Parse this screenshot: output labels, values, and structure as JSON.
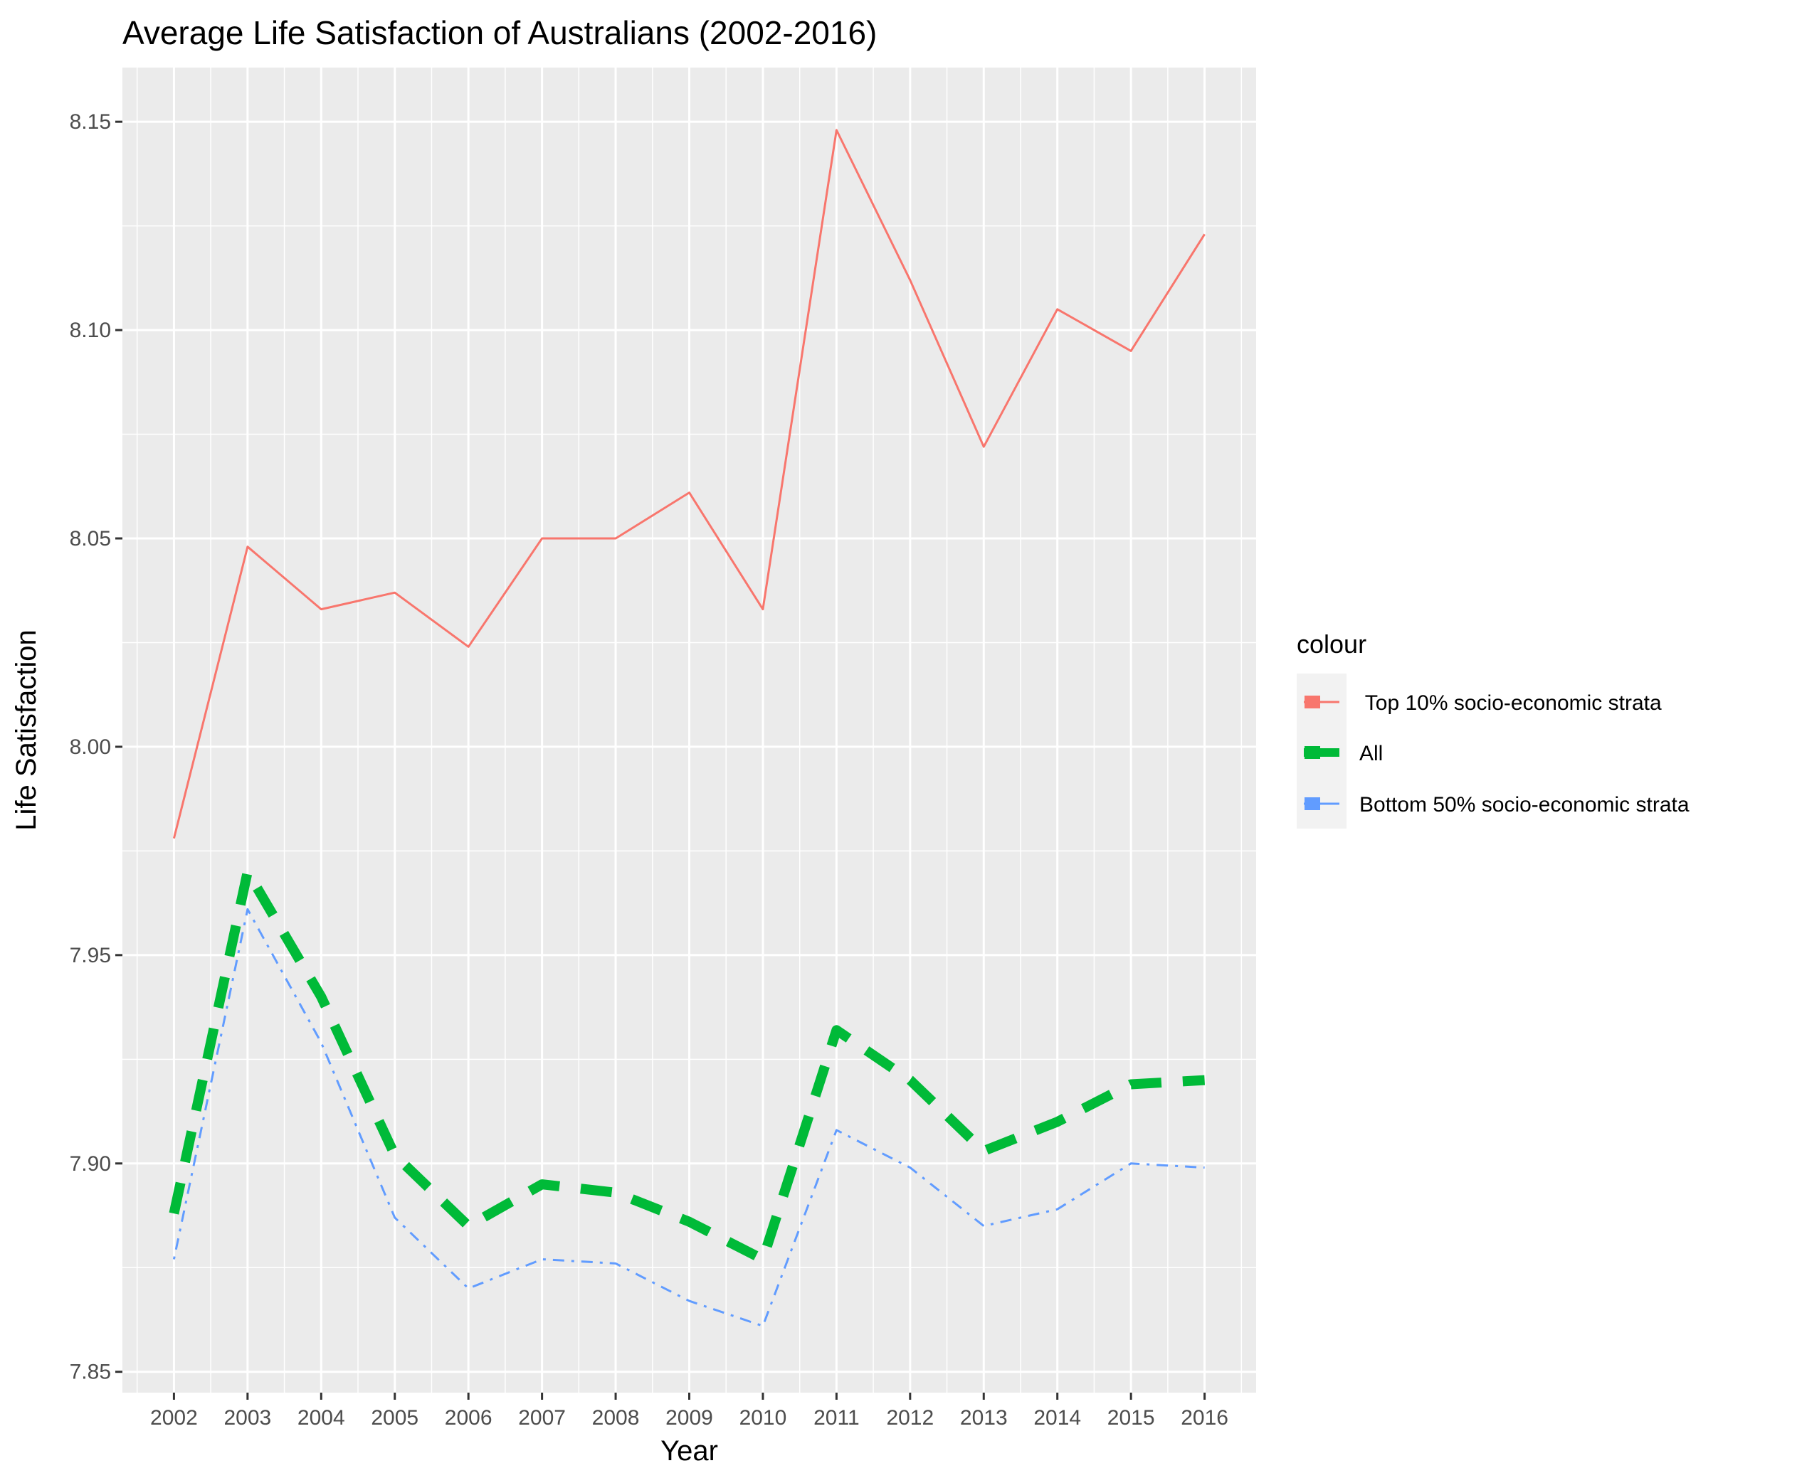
{
  "chart_data": {
    "type": "line",
    "title": "Average Life Satisfaction of Australians (2002-2016)",
    "xlabel": "Year",
    "ylabel": "Life Satisfaction",
    "x": [
      2002,
      2003,
      2004,
      2005,
      2006,
      2007,
      2008,
      2009,
      2010,
      2011,
      2012,
      2013,
      2014,
      2015,
      2016
    ],
    "x_tick_labels": [
      "2002",
      "2003",
      "2004",
      "2005",
      "2006",
      "2007",
      "2008",
      "2009",
      "2010",
      "2011",
      "2012",
      "2013",
      "2014",
      "2015",
      "2016"
    ],
    "y_ticks": [
      7.85,
      7.9,
      7.95,
      8.0,
      8.05,
      8.1,
      8.15
    ],
    "y_tick_labels": [
      "7.85",
      "7.90",
      "7.95",
      "8.00",
      "8.05",
      "8.10",
      "8.15"
    ],
    "xlim": [
      2001.3,
      2016.7
    ],
    "ylim": [
      7.845,
      8.163
    ],
    "grid": true,
    "legend": {
      "title": "colour",
      "position": "right"
    },
    "series": [
      {
        "name": " Top 10% socio-economic strata",
        "color": "#F8766D",
        "linetype": "solid",
        "width": "thin",
        "values": [
          7.978,
          8.048,
          8.033,
          8.037,
          8.024,
          8.05,
          8.05,
          8.061,
          8.033,
          8.148,
          8.112,
          8.072,
          8.105,
          8.095,
          8.123
        ]
      },
      {
        "name": "All",
        "color": "#00BA38",
        "linetype": "dashed",
        "width": "thick",
        "values": [
          7.888,
          7.97,
          7.94,
          7.902,
          7.885,
          7.895,
          7.893,
          7.886,
          7.877,
          7.932,
          7.92,
          7.903,
          7.91,
          7.919,
          7.92
        ]
      },
      {
        "name": "Bottom 50% socio-economic strata",
        "color": "#619CFF",
        "linetype": "dotdash",
        "width": "thin",
        "values": [
          7.877,
          7.961,
          7.929,
          7.887,
          7.87,
          7.877,
          7.876,
          7.867,
          7.861,
          7.908,
          7.899,
          7.885,
          7.889,
          7.9,
          7.899
        ]
      }
    ]
  }
}
